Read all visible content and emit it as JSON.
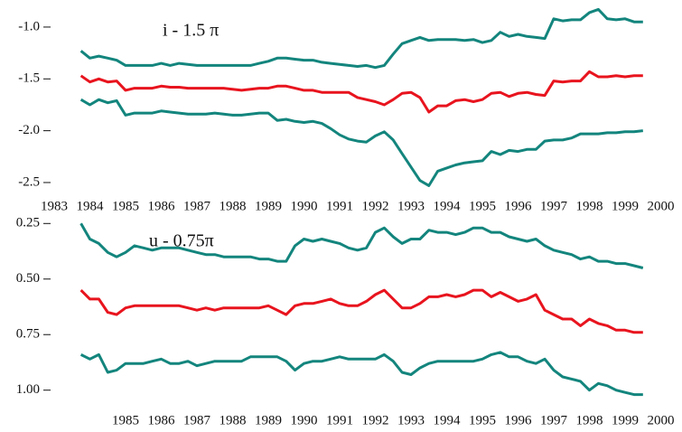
{
  "chart_data": [
    {
      "type": "line",
      "annotation": "i - 1.5 π",
      "x": [
        1983.75,
        1984,
        1984.25,
        1984.5,
        1984.75,
        1985,
        1985.25,
        1985.5,
        1985.75,
        1986,
        1986.25,
        1986.5,
        1986.75,
        1987,
        1987.25,
        1987.5,
        1987.75,
        1988,
        1988.25,
        1988.5,
        1988.75,
        1989,
        1989.25,
        1989.5,
        1989.75,
        1990,
        1990.25,
        1990.5,
        1990.75,
        1991,
        1991.25,
        1991.5,
        1991.75,
        1992,
        1992.25,
        1992.5,
        1992.75,
        1993,
        1993.25,
        1993.5,
        1993.75,
        1994,
        1994.25,
        1994.5,
        1994.75,
        1995,
        1995.25,
        1995.5,
        1995.75,
        1996,
        1996.25,
        1996.5,
        1996.75,
        1997,
        1997.25,
        1997.5,
        1997.75,
        1998,
        1998.25,
        1998.5,
        1998.75,
        1999,
        1999.25,
        1999.5
      ],
      "xlim": [
        1983,
        2000
      ],
      "xticks": [
        1983,
        1984,
        1985,
        1986,
        1987,
        1988,
        1989,
        1990,
        1991,
        1992,
        1993,
        1994,
        1995,
        1996,
        1997,
        1998,
        1999,
        2000
      ],
      "ylim": [
        -2.57,
        -0.8
      ],
      "yticks": [
        {
          "value": -1,
          "label": "-1.0"
        },
        -1.5,
        {
          "value": -2,
          "label": "-2.0"
        },
        -2.5
      ],
      "grid": false,
      "series": [
        {
          "color": "#13857d",
          "values": [
            -1.23,
            -1.3,
            -1.28,
            -1.3,
            -1.32,
            -1.37,
            -1.37,
            -1.37,
            -1.37,
            -1.35,
            -1.37,
            -1.35,
            -1.36,
            -1.37,
            -1.37,
            -1.37,
            -1.37,
            -1.37,
            -1.37,
            -1.37,
            -1.35,
            -1.33,
            -1.3,
            -1.3,
            -1.31,
            -1.32,
            -1.32,
            -1.34,
            -1.35,
            -1.36,
            -1.37,
            -1.38,
            -1.37,
            -1.39,
            -1.37,
            -1.26,
            -1.16,
            -1.13,
            -1.1,
            -1.13,
            -1.12,
            -1.12,
            -1.12,
            -1.13,
            -1.12,
            -1.15,
            -1.13,
            -1.05,
            -1.09,
            -1.07,
            -1.09,
            -1.1,
            -1.11,
            -0.92,
            -0.94,
            -0.93,
            -0.93,
            -0.86,
            -0.83,
            -0.92,
            -0.93,
            -0.92,
            -0.95,
            -0.95
          ]
        },
        {
          "color": "#e8141e",
          "values": [
            -1.47,
            -1.53,
            -1.5,
            -1.53,
            -1.52,
            -1.61,
            -1.59,
            -1.59,
            -1.59,
            -1.57,
            -1.58,
            -1.58,
            -1.59,
            -1.59,
            -1.59,
            -1.59,
            -1.59,
            -1.6,
            -1.61,
            -1.6,
            -1.59,
            -1.59,
            -1.57,
            -1.57,
            -1.59,
            -1.61,
            -1.61,
            -1.63,
            -1.63,
            -1.63,
            -1.63,
            -1.68,
            -1.7,
            -1.72,
            -1.75,
            -1.7,
            -1.64,
            -1.63,
            -1.68,
            -1.82,
            -1.76,
            -1.76,
            -1.71,
            -1.7,
            -1.72,
            -1.7,
            -1.64,
            -1.63,
            -1.67,
            -1.64,
            -1.63,
            -1.65,
            -1.66,
            -1.52,
            -1.53,
            -1.52,
            -1.52,
            -1.43,
            -1.48,
            -1.48,
            -1.47,
            -1.48,
            -1.47,
            -1.47
          ]
        },
        {
          "color": "#13857d",
          "values": [
            -1.7,
            -1.75,
            -1.7,
            -1.73,
            -1.71,
            -1.85,
            -1.83,
            -1.83,
            -1.83,
            -1.81,
            -1.82,
            -1.83,
            -1.84,
            -1.84,
            -1.84,
            -1.83,
            -1.84,
            -1.85,
            -1.85,
            -1.84,
            -1.83,
            -1.83,
            -1.9,
            -1.89,
            -1.91,
            -1.92,
            -1.91,
            -1.93,
            -1.98,
            -2.04,
            -2.08,
            -2.1,
            -2.11,
            -2.05,
            -2.01,
            -2.09,
            -2.22,
            -2.35,
            -2.48,
            -2.53,
            -2.39,
            -2.36,
            -2.33,
            -2.31,
            -2.3,
            -2.29,
            -2.2,
            -2.23,
            -2.19,
            -2.2,
            -2.18,
            -2.18,
            -2.1,
            -2.09,
            -2.09,
            -2.07,
            -2.03,
            -2.03,
            -2.03,
            -2.02,
            -2.02,
            -2.01,
            -2.01,
            -2.0
          ]
        }
      ]
    },
    {
      "type": "line",
      "annotation": "u - 0.75π",
      "x": [
        1983.75,
        1984,
        1984.25,
        1984.5,
        1984.75,
        1985,
        1985.25,
        1985.5,
        1985.75,
        1986,
        1986.25,
        1986.5,
        1986.75,
        1987,
        1987.25,
        1987.5,
        1987.75,
        1988,
        1988.25,
        1988.5,
        1988.75,
        1989,
        1989.25,
        1989.5,
        1989.75,
        1990,
        1990.25,
        1990.5,
        1990.75,
        1991,
        1991.25,
        1991.5,
        1991.75,
        1992,
        1992.25,
        1992.5,
        1992.75,
        1993,
        1993.25,
        1993.5,
        1993.75,
        1994,
        1994.25,
        1994.5,
        1994.75,
        1995,
        1995.25,
        1995.5,
        1995.75,
        1996,
        1996.25,
        1996.5,
        1996.75,
        1997,
        1997.25,
        1997.5,
        1997.75,
        1998,
        1998.25,
        1998.5,
        1998.75,
        1999,
        1999.25,
        1999.5
      ],
      "xlim": [
        1983,
        2000
      ],
      "xticks": [
        1985,
        1986,
        1987,
        1988,
        1989,
        1990,
        1991,
        1992,
        1993,
        1994,
        1995,
        1996,
        1997,
        1998,
        1999,
        2000
      ],
      "ylim": [
        1.05,
        0.2
      ],
      "yticks": [
        0.25,
        {
          "value": 0.5,
          "label": "0.50"
        },
        0.75,
        {
          "value": 1,
          "label": "1.00"
        }
      ],
      "grid": false,
      "series": [
        {
          "color": "#13857d",
          "values": [
            0.25,
            0.32,
            0.34,
            0.38,
            0.4,
            0.38,
            0.35,
            0.36,
            0.37,
            0.36,
            0.36,
            0.36,
            0.37,
            0.38,
            0.39,
            0.39,
            0.4,
            0.4,
            0.4,
            0.4,
            0.41,
            0.41,
            0.42,
            0.42,
            0.35,
            0.32,
            0.33,
            0.32,
            0.33,
            0.34,
            0.36,
            0.37,
            0.36,
            0.29,
            0.27,
            0.31,
            0.34,
            0.32,
            0.32,
            0.28,
            0.29,
            0.29,
            0.3,
            0.29,
            0.27,
            0.27,
            0.29,
            0.29,
            0.31,
            0.32,
            0.33,
            0.32,
            0.35,
            0.37,
            0.38,
            0.39,
            0.41,
            0.4,
            0.42,
            0.42,
            0.43,
            0.43,
            0.44,
            0.45
          ]
        },
        {
          "color": "#e8141e",
          "values": [
            0.55,
            0.59,
            0.59,
            0.65,
            0.66,
            0.63,
            0.62,
            0.62,
            0.62,
            0.62,
            0.62,
            0.62,
            0.63,
            0.64,
            0.63,
            0.64,
            0.63,
            0.63,
            0.63,
            0.63,
            0.63,
            0.62,
            0.64,
            0.66,
            0.62,
            0.61,
            0.61,
            0.6,
            0.59,
            0.61,
            0.62,
            0.62,
            0.6,
            0.57,
            0.55,
            0.59,
            0.63,
            0.63,
            0.61,
            0.58,
            0.58,
            0.57,
            0.58,
            0.57,
            0.55,
            0.55,
            0.58,
            0.56,
            0.58,
            0.6,
            0.59,
            0.57,
            0.64,
            0.66,
            0.68,
            0.68,
            0.71,
            0.68,
            0.7,
            0.71,
            0.73,
            0.73,
            0.74,
            0.74
          ]
        },
        {
          "color": "#13857d",
          "values": [
            0.84,
            0.86,
            0.84,
            0.92,
            0.91,
            0.88,
            0.88,
            0.88,
            0.87,
            0.86,
            0.88,
            0.88,
            0.87,
            0.89,
            0.88,
            0.87,
            0.87,
            0.87,
            0.87,
            0.85,
            0.85,
            0.85,
            0.85,
            0.87,
            0.91,
            0.88,
            0.87,
            0.87,
            0.86,
            0.85,
            0.86,
            0.86,
            0.86,
            0.86,
            0.84,
            0.87,
            0.92,
            0.93,
            0.9,
            0.88,
            0.87,
            0.87,
            0.87,
            0.87,
            0.87,
            0.86,
            0.84,
            0.83,
            0.85,
            0.85,
            0.87,
            0.88,
            0.86,
            0.91,
            0.94,
            0.95,
            0.96,
            1.0,
            0.97,
            0.98,
            1.0,
            1.01,
            1.02,
            1.02
          ]
        }
      ]
    }
  ]
}
